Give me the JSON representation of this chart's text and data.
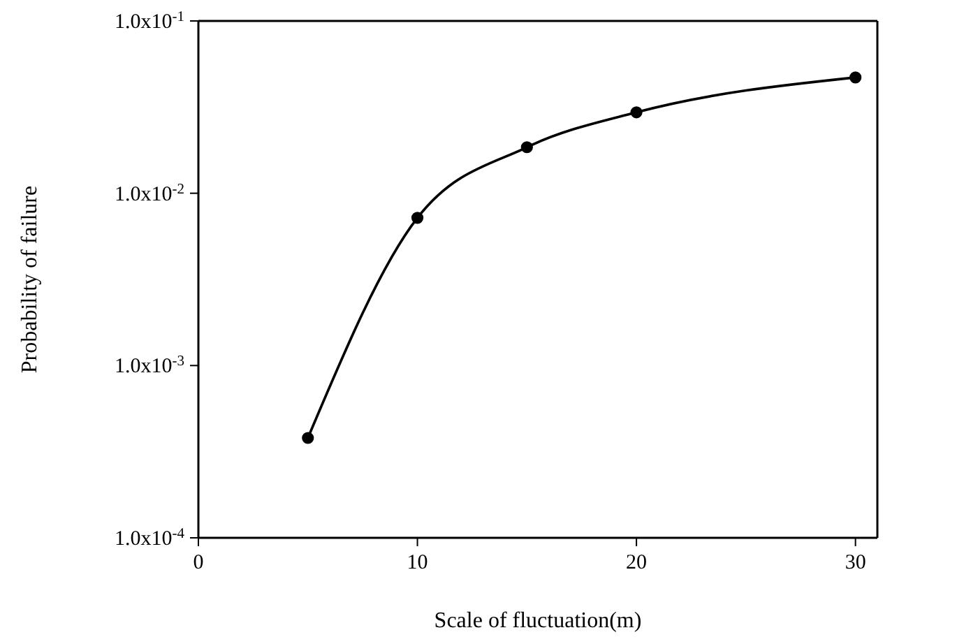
{
  "chart_data": {
    "type": "line",
    "xlabel": "Scale of fluctuation(m)",
    "ylabel": "Probability of failure",
    "x": [
      5,
      10,
      15,
      20,
      30
    ],
    "series": [
      {
        "color": "#000000",
        "values": [
          0.00038,
          0.0072,
          0.0185,
          0.0295,
          0.047
        ]
      }
    ],
    "xlim": [
      0,
      31
    ],
    "xticks": [
      0,
      10,
      20,
      30
    ],
    "ylim": [
      0.0001,
      0.1
    ],
    "yticks": [
      {
        "value": 0.0001,
        "label": "1.0x10$^{-4}$"
      },
      {
        "value": 0.001,
        "label": "1.0x10$^{-3}$"
      },
      {
        "value": 0.01,
        "label": "1.0x10$^{-2}$"
      },
      {
        "value": 0.1,
        "label": "1.0x10$^{-1}$"
      }
    ],
    "log": "y",
    "marker": "circle",
    "line_style": "solid"
  }
}
